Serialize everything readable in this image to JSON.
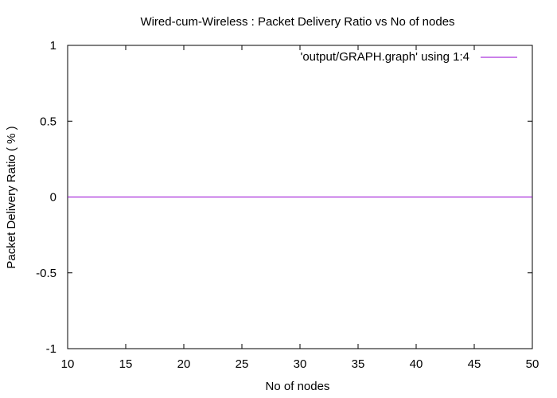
{
  "chart_data": {
    "type": "line",
    "title": "Wired-cum-Wireless : Packet Delivery Ratio vs No of nodes",
    "xlabel": "No of nodes",
    "ylabel": "Packet Delivery Ratio ( % )",
    "xlim": [
      10,
      50
    ],
    "ylim": [
      -1,
      1
    ],
    "xticks": [
      "10",
      "15",
      "20",
      "25",
      "30",
      "35",
      "40",
      "45",
      "50"
    ],
    "yticks": [
      "-1",
      "-0.5",
      "0",
      "0.5",
      "1"
    ],
    "grid": false,
    "legend_position": "top-right",
    "series": [
      {
        "name": "'output/GRAPH.graph' using 1:4",
        "color": "#9400d3",
        "x": [
          10,
          50
        ],
        "y": [
          0,
          0
        ]
      }
    ]
  }
}
